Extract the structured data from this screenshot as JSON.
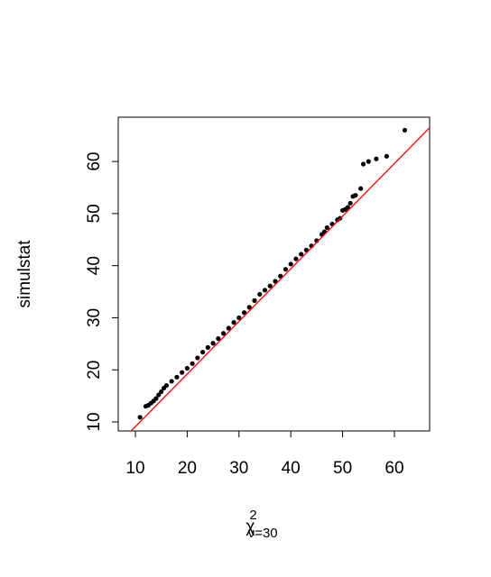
{
  "chart_data": {
    "type": "scatter",
    "ylabel": "simulstat",
    "xlabel": {
      "symbol": "χ",
      "sup": "2",
      "sub": "ν=30"
    },
    "xlim": [
      6.69,
      66.8
    ],
    "ylim": [
      8.27,
      68.5
    ],
    "xticks": [
      10,
      20,
      30,
      40,
      50,
      60
    ],
    "yticks": [
      10,
      20,
      30,
      40,
      50,
      60
    ],
    "reference_line": {
      "slope": 1.01,
      "intercept": -1,
      "color": "#ff0000"
    },
    "series": [
      {
        "color": "#000000",
        "x": [
          10.9,
          12,
          12.5,
          13,
          13.5,
          14,
          14.5,
          15,
          15.5,
          16,
          17,
          18,
          19,
          20,
          21,
          22,
          23,
          24,
          25,
          26,
          27,
          28,
          29,
          30,
          31,
          32,
          33,
          34,
          35,
          36,
          37,
          38,
          39,
          40,
          41,
          42,
          43,
          44,
          45,
          46,
          46.5,
          47,
          48,
          49,
          49.5,
          50,
          50.5,
          51,
          51.5,
          52,
          52.5,
          53.5,
          54,
          55,
          56.5,
          58.5,
          62
        ],
        "values": [
          10.9,
          13,
          13.2,
          13.6,
          14,
          14.5,
          15.2,
          15.8,
          16.5,
          17,
          17.8,
          18.6,
          19.5,
          20.3,
          21.2,
          22.3,
          23.4,
          24.3,
          25.1,
          26,
          27,
          28,
          29.1,
          30,
          31,
          32,
          33.3,
          34.5,
          35.3,
          36.1,
          37,
          38,
          39.3,
          40.3,
          41.3,
          42.2,
          43,
          43.8,
          44.8,
          46,
          46.5,
          47.3,
          48,
          48.8,
          49.1,
          50.6,
          50.8,
          51.2,
          52,
          53.3,
          53.5,
          54.8,
          59.5,
          60,
          60.5,
          61,
          66
        ]
      }
    ]
  }
}
